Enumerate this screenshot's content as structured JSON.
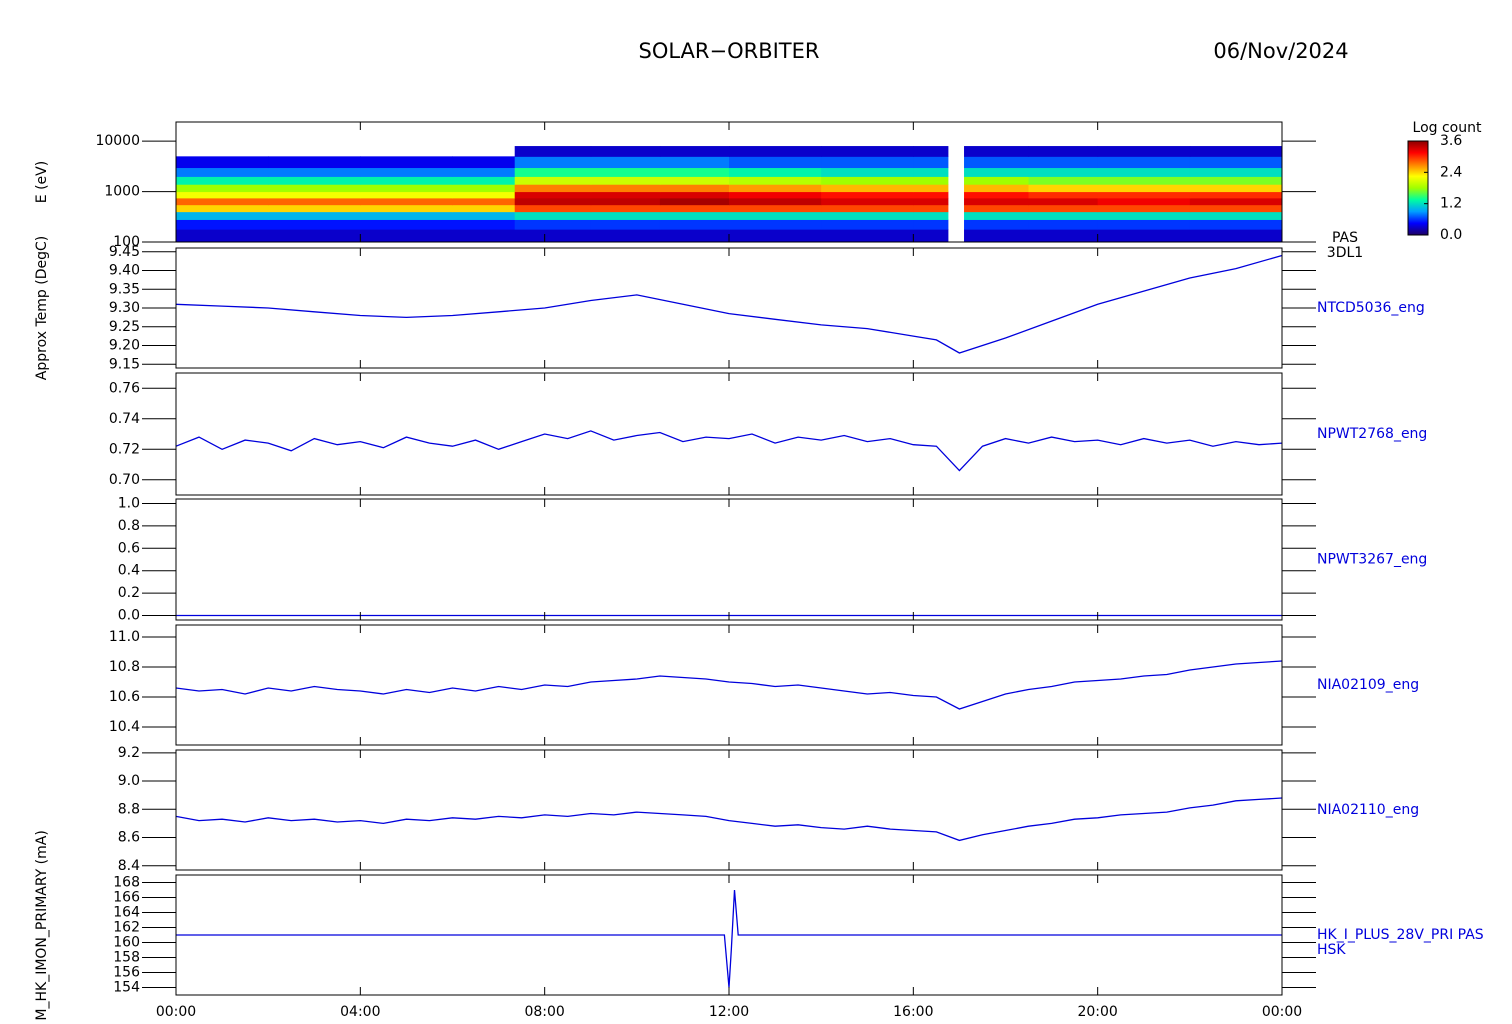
{
  "header": {
    "title": "SOLAR−ORBITER",
    "date": "06/Nov/2024"
  },
  "chart_data": [
    {
      "type": "heatmap",
      "ylabel": "E (eV)",
      "log_y": true,
      "ylim": [
        100,
        24000
      ],
      "yticks": [
        100,
        1000,
        10000
      ],
      "x_edges": [
        0,
        2,
        4,
        6,
        7.35,
        9,
        10.5,
        12,
        14,
        16,
        16.75,
        17.1,
        18.5,
        20,
        22,
        24
      ],
      "y_edges": [
        100,
        180,
        280,
        400,
        550,
        750,
        1000,
        1400,
        2000,
        3000,
        5000,
        8000
      ],
      "z": [
        [
          0.3,
          0.3,
          0.3,
          0.3,
          0.3,
          0.3,
          0.3,
          0.3,
          0.3,
          0.3,
          null,
          0.3,
          0.3,
          0.3,
          0.3
        ],
        [
          0.5,
          0.5,
          0.5,
          0.5,
          0.6,
          0.6,
          0.6,
          0.6,
          0.6,
          0.6,
          null,
          0.6,
          0.6,
          0.6,
          0.6
        ],
        [
          1.0,
          1.0,
          1.0,
          1.0,
          1.2,
          1.2,
          1.2,
          1.2,
          1.2,
          1.2,
          null,
          1.2,
          1.2,
          1.2,
          1.2
        ],
        [
          2.4,
          2.4,
          2.4,
          2.4,
          2.9,
          2.9,
          2.9,
          2.9,
          2.9,
          2.9,
          null,
          2.9,
          2.9,
          2.9,
          2.9
        ],
        [
          2.8,
          2.8,
          2.8,
          2.8,
          3.4,
          3.4,
          3.5,
          3.4,
          3.3,
          3.3,
          null,
          3.3,
          3.3,
          3.2,
          3.3
        ],
        [
          2.2,
          2.2,
          2.2,
          2.2,
          3.3,
          3.3,
          3.3,
          3.2,
          3.1,
          3.1,
          null,
          3.1,
          3.0,
          3.0,
          3.0
        ],
        [
          1.8,
          1.8,
          1.8,
          1.8,
          2.7,
          2.7,
          2.7,
          2.6,
          2.5,
          2.5,
          null,
          2.5,
          2.4,
          2.4,
          2.4
        ],
        [
          1.3,
          1.3,
          1.3,
          1.3,
          2.0,
          2.0,
          2.0,
          1.9,
          1.8,
          1.8,
          null,
          1.8,
          1.7,
          1.7,
          1.7
        ],
        [
          0.8,
          0.8,
          0.8,
          0.8,
          1.4,
          1.4,
          1.4,
          1.3,
          1.2,
          1.2,
          null,
          1.2,
          1.2,
          1.2,
          1.2
        ],
        [
          0.4,
          0.4,
          0.4,
          0.4,
          0.8,
          0.8,
          0.8,
          0.7,
          0.7,
          0.7,
          null,
          0.7,
          0.7,
          0.7,
          0.7
        ],
        [
          null,
          null,
          null,
          null,
          0.3,
          0.3,
          0.3,
          0.3,
          0.3,
          0.3,
          null,
          0.3,
          0.3,
          0.3,
          0.3
        ]
      ],
      "colormap": [
        "#1e0064",
        "#0000ff",
        "#00a0ff",
        "#00ffa0",
        "#a0ff00",
        "#ffff00",
        "#ff8000",
        "#ff0000",
        "#8c0000"
      ],
      "clim": [
        0,
        3.6
      ],
      "colorbar_label": "Log count",
      "colorbar_ticks": [
        {
          "value": 0,
          "label": "0.0"
        },
        1.2,
        2.4,
        3.6
      ],
      "side_labels": [
        "PAS",
        "3DL1"
      ]
    },
    {
      "type": "line",
      "ylabel": "Approx Temp (DegC)",
      "ylim": [
        9.14,
        9.46
      ],
      "yticks": [
        9.15,
        {
          "value": 9.2,
          "label": "9.20"
        },
        9.25,
        {
          "value": 9.3,
          "label": "9.30"
        },
        9.35,
        {
          "value": 9.4,
          "label": "9.40"
        },
        9.45
      ],
      "x": [
        0,
        1,
        2,
        3,
        4,
        5,
        6,
        7,
        8,
        9,
        10,
        11,
        12,
        13,
        14,
        15,
        16,
        16.5,
        17,
        18,
        19,
        20,
        21,
        22,
        23,
        24
      ],
      "series": [
        {
          "name": "NTCD5036_eng",
          "color": "#0000dc",
          "values": [
            9.31,
            9.305,
            9.3,
            9.29,
            9.28,
            9.275,
            9.28,
            9.29,
            9.3,
            9.32,
            9.335,
            9.31,
            9.285,
            9.27,
            9.255,
            9.245,
            9.225,
            9.215,
            9.18,
            9.22,
            9.265,
            9.31,
            9.345,
            9.38,
            9.405,
            9.44
          ]
        }
      ]
    },
    {
      "type": "line",
      "ylim": [
        0.69,
        0.77
      ],
      "yticks": [
        {
          "value": 0.7,
          "label": "0.70"
        },
        0.72,
        0.74,
        0.76
      ],
      "x": [
        0,
        0.5,
        1,
        1.5,
        2,
        2.5,
        3,
        3.5,
        4,
        4.5,
        5,
        5.5,
        6,
        6.5,
        7,
        7.5,
        8,
        8.5,
        9,
        9.5,
        10,
        10.5,
        11,
        11.5,
        12,
        12.5,
        13,
        13.5,
        14,
        14.5,
        15,
        15.5,
        16,
        16.5,
        17,
        17.5,
        18,
        18.5,
        19,
        19.5,
        20,
        20.5,
        21,
        21.5,
        22,
        22.5,
        23,
        23.5,
        24
      ],
      "series": [
        {
          "name": "NPWT2768_eng",
          "color": "#0000dc",
          "values": [
            0.722,
            0.728,
            0.72,
            0.726,
            0.724,
            0.719,
            0.727,
            0.723,
            0.725,
            0.721,
            0.728,
            0.724,
            0.722,
            0.726,
            0.72,
            0.725,
            0.73,
            0.727,
            0.732,
            0.726,
            0.729,
            0.731,
            0.725,
            0.728,
            0.727,
            0.73,
            0.724,
            0.728,
            0.726,
            0.729,
            0.725,
            0.727,
            0.723,
            0.722,
            0.706,
            0.722,
            0.727,
            0.724,
            0.728,
            0.725,
            0.726,
            0.723,
            0.727,
            0.724,
            0.726,
            0.722,
            0.725,
            0.723,
            0.724
          ]
        }
      ]
    },
    {
      "type": "line",
      "ylim": [
        -0.04,
        1.04
      ],
      "yticks": [
        {
          "value": 0,
          "label": "0.0"
        },
        0.2,
        0.4,
        0.6,
        0.8,
        {
          "value": 1,
          "label": "1.0"
        }
      ],
      "x": [
        0,
        24
      ],
      "series": [
        {
          "name": "NPWT3267_eng",
          "color": "#0000dc",
          "values": [
            0,
            0
          ]
        }
      ]
    },
    {
      "type": "line",
      "ylim": [
        10.28,
        11.08
      ],
      "yticks": [
        10.4,
        10.6,
        10.8,
        {
          "value": 11,
          "label": "11.0"
        }
      ],
      "x": [
        0,
        0.5,
        1,
        1.5,
        2,
        2.5,
        3,
        3.5,
        4,
        4.5,
        5,
        5.5,
        6,
        6.5,
        7,
        7.5,
        8,
        8.5,
        9,
        9.5,
        10,
        10.5,
        11,
        11.5,
        12,
        12.5,
        13,
        13.5,
        14,
        14.5,
        15,
        15.5,
        16,
        16.5,
        17,
        17.5,
        18,
        18.5,
        19,
        19.5,
        20,
        20.5,
        21,
        21.5,
        22,
        22.5,
        23,
        23.5,
        24
      ],
      "series": [
        {
          "name": "NIA02109_eng",
          "color": "#0000dc",
          "values": [
            10.66,
            10.64,
            10.65,
            10.62,
            10.66,
            10.64,
            10.67,
            10.65,
            10.64,
            10.62,
            10.65,
            10.63,
            10.66,
            10.64,
            10.67,
            10.65,
            10.68,
            10.67,
            10.7,
            10.71,
            10.72,
            10.74,
            10.73,
            10.72,
            10.7,
            10.69,
            10.67,
            10.68,
            10.66,
            10.64,
            10.62,
            10.63,
            10.61,
            10.6,
            10.52,
            10.57,
            10.62,
            10.65,
            10.67,
            10.7,
            10.71,
            10.72,
            10.74,
            10.75,
            10.78,
            10.8,
            10.82,
            10.83,
            10.84
          ]
        }
      ]
    },
    {
      "type": "line",
      "ylim": [
        8.37,
        9.22
      ],
      "yticks": [
        8.4,
        8.6,
        8.8,
        {
          "value": 9,
          "label": "9.0"
        },
        9.2
      ],
      "x": [
        0,
        0.5,
        1,
        1.5,
        2,
        2.5,
        3,
        3.5,
        4,
        4.5,
        5,
        5.5,
        6,
        6.5,
        7,
        7.5,
        8,
        8.5,
        9,
        9.5,
        10,
        10.5,
        11,
        11.5,
        12,
        12.5,
        13,
        13.5,
        14,
        14.5,
        15,
        15.5,
        16,
        16.5,
        17,
        17.5,
        18,
        18.5,
        19,
        19.5,
        20,
        20.5,
        21,
        21.5,
        22,
        22.5,
        23,
        23.5,
        24
      ],
      "series": [
        {
          "name": "NIA02110_eng",
          "color": "#0000dc",
          "values": [
            8.75,
            8.72,
            8.73,
            8.71,
            8.74,
            8.72,
            8.73,
            8.71,
            8.72,
            8.7,
            8.73,
            8.72,
            8.74,
            8.73,
            8.75,
            8.74,
            8.76,
            8.75,
            8.77,
            8.76,
            8.78,
            8.77,
            8.76,
            8.75,
            8.72,
            8.7,
            8.68,
            8.69,
            8.67,
            8.66,
            8.68,
            8.66,
            8.65,
            8.64,
            8.58,
            8.62,
            8.65,
            8.68,
            8.7,
            8.73,
            8.74,
            8.76,
            8.77,
            8.78,
            8.81,
            8.83,
            8.86,
            8.87,
            8.88
          ]
        }
      ]
    },
    {
      "type": "line",
      "ylabel": "PDM_HK_IMON_PRIMARY (mA)",
      "ylim": [
        153,
        169
      ],
      "yticks": [
        154,
        156,
        158,
        160,
        162,
        164,
        166,
        168
      ],
      "x": [
        0,
        2,
        4,
        6,
        8,
        10,
        11.9,
        12,
        12.05,
        12.12,
        12.2,
        14,
        16,
        18,
        20,
        22,
        24
      ],
      "series": [
        {
          "name": "HK_I_PLUS_28V_PRI PAS",
          "color": "#0000dc",
          "values": [
            161,
            161,
            161,
            161,
            161,
            161,
            161,
            154,
            159,
            167,
            161,
            161,
            161,
            161,
            161,
            161,
            161
          ]
        }
      ],
      "side_labels": [
        "HSK"
      ],
      "xlim": [
        0,
        24
      ],
      "xticks": [
        {
          "value": 0,
          "label": "00:00"
        },
        {
          "value": 4,
          "label": "04:00"
        },
        {
          "value": 8,
          "label": "08:00"
        },
        {
          "value": 12,
          "label": "12:00"
        },
        {
          "value": 16,
          "label": "16:00"
        },
        {
          "value": 20,
          "label": "20:00"
        },
        {
          "value": 24,
          "label": "00:00"
        }
      ]
    }
  ]
}
